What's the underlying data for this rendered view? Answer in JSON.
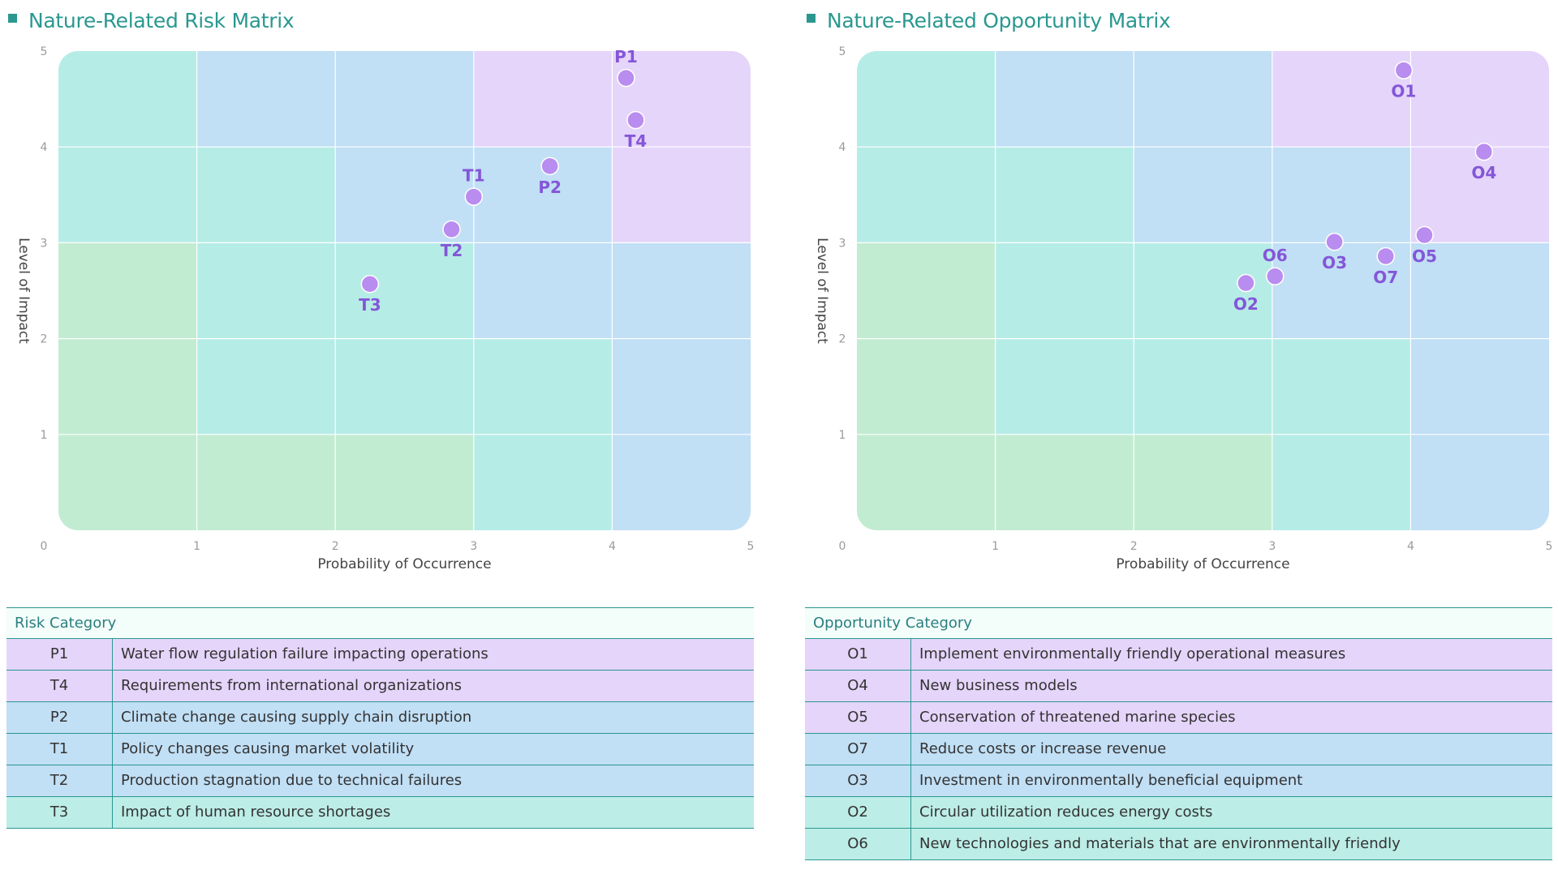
{
  "colors": {
    "title": "#2a9890",
    "zone_green": "#c2ecd2",
    "zone_teal": "#b6ece6",
    "zone_blue": "#c1dff5",
    "zone_purple": "#e5d5fa",
    "point": "#b98cef",
    "label": "#8456d8"
  },
  "risk": {
    "title": "Nature-Related Risk Matrix",
    "legend_header": "Risk Category",
    "legend": [
      {
        "code": "P1",
        "desc": "Water flow regulation failure impacting operations",
        "zone": "purple"
      },
      {
        "code": "T4",
        "desc": "Requirements from international organizations",
        "zone": "purple"
      },
      {
        "code": "P2",
        "desc": "Climate change causing supply chain disruption",
        "zone": "blue"
      },
      {
        "code": "T1",
        "desc": "Policy changes causing market volatility",
        "zone": "blue"
      },
      {
        "code": "T2",
        "desc": "Production stagnation due to technical failures",
        "zone": "blue"
      },
      {
        "code": "T3",
        "desc": "Impact of human resource shortages",
        "zone": "teal"
      }
    ]
  },
  "opportunity": {
    "title": "Nature-Related Opportunity Matrix",
    "legend_header": "Opportunity Category",
    "legend": [
      {
        "code": "O1",
        "desc": "Implement environmentally friendly operational measures",
        "zone": "purple"
      },
      {
        "code": "O4",
        "desc": "New business models",
        "zone": "purple"
      },
      {
        "code": "O5",
        "desc": "Conservation of threatened marine species",
        "zone": "purple"
      },
      {
        "code": "O7",
        "desc": "Reduce costs or increase revenue",
        "zone": "blue"
      },
      {
        "code": "O3",
        "desc": "Investment in environmentally beneficial equipment",
        "zone": "blue"
      },
      {
        "code": "O2",
        "desc": "Circular utilization reduces energy costs",
        "zone": "teal"
      },
      {
        "code": "O6",
        "desc": "New technologies and materials that are environmentally friendly",
        "zone": "teal"
      }
    ]
  },
  "chart_data": [
    {
      "type": "scatter",
      "title": "Nature-Related Risk Matrix",
      "xlabel": "Probability of Occurrence",
      "ylabel": "Level of Impact",
      "xlim": [
        0,
        5
      ],
      "ylim": [
        0,
        5
      ],
      "xticks": [
        "0",
        "1",
        "2",
        "3",
        "4",
        "5"
      ],
      "yticks": [
        "1",
        "2",
        "3",
        "4",
        "5"
      ],
      "grid_zones": [
        [
          "teal",
          "blue",
          "blue",
          "purple",
          "purple"
        ],
        [
          "teal",
          "teal",
          "blue",
          "blue",
          "purple"
        ],
        [
          "green",
          "teal",
          "teal",
          "blue",
          "blue"
        ],
        [
          "green",
          "teal",
          "teal",
          "teal",
          "blue"
        ],
        [
          "green",
          "green",
          "green",
          "teal",
          "blue"
        ]
      ],
      "points": [
        {
          "label": "P1",
          "x": 4.1,
          "y": 4.72,
          "label_pos": "above"
        },
        {
          "label": "T4",
          "x": 4.17,
          "y": 4.28,
          "label_pos": "below"
        },
        {
          "label": "P2",
          "x": 3.55,
          "y": 3.8,
          "label_pos": "below"
        },
        {
          "label": "T1",
          "x": 3.0,
          "y": 3.48,
          "label_pos": "above"
        },
        {
          "label": "T2",
          "x": 2.84,
          "y": 3.14,
          "label_pos": "below"
        },
        {
          "label": "T3",
          "x": 2.25,
          "y": 2.57,
          "label_pos": "below"
        }
      ]
    },
    {
      "type": "scatter",
      "title": "Nature-Related Opportunity Matrix",
      "xlabel": "Probability of Occurrence",
      "ylabel": "Level of Impact",
      "xlim": [
        0,
        5
      ],
      "ylim": [
        0,
        5
      ],
      "xticks": [
        "0",
        "1",
        "2",
        "3",
        "4",
        "5"
      ],
      "yticks": [
        "1",
        "2",
        "3",
        "4",
        "5"
      ],
      "grid_zones": [
        [
          "teal",
          "blue",
          "blue",
          "purple",
          "purple"
        ],
        [
          "teal",
          "teal",
          "blue",
          "blue",
          "purple"
        ],
        [
          "green",
          "teal",
          "teal",
          "blue",
          "blue"
        ],
        [
          "green",
          "teal",
          "teal",
          "teal",
          "blue"
        ],
        [
          "green",
          "green",
          "green",
          "teal",
          "blue"
        ]
      ],
      "points": [
        {
          "label": "O1",
          "x": 3.95,
          "y": 4.8,
          "label_pos": "below"
        },
        {
          "label": "O4",
          "x": 4.53,
          "y": 3.95,
          "label_pos": "below"
        },
        {
          "label": "O5",
          "x": 4.1,
          "y": 3.08,
          "label_pos": "below"
        },
        {
          "label": "O3",
          "x": 3.45,
          "y": 3.01,
          "label_pos": "below"
        },
        {
          "label": "O7",
          "x": 3.82,
          "y": 2.86,
          "label_pos": "below"
        },
        {
          "label": "O6",
          "x": 3.02,
          "y": 2.65,
          "label_pos": "above"
        },
        {
          "label": "O2",
          "x": 2.81,
          "y": 2.58,
          "label_pos": "below"
        }
      ]
    }
  ]
}
